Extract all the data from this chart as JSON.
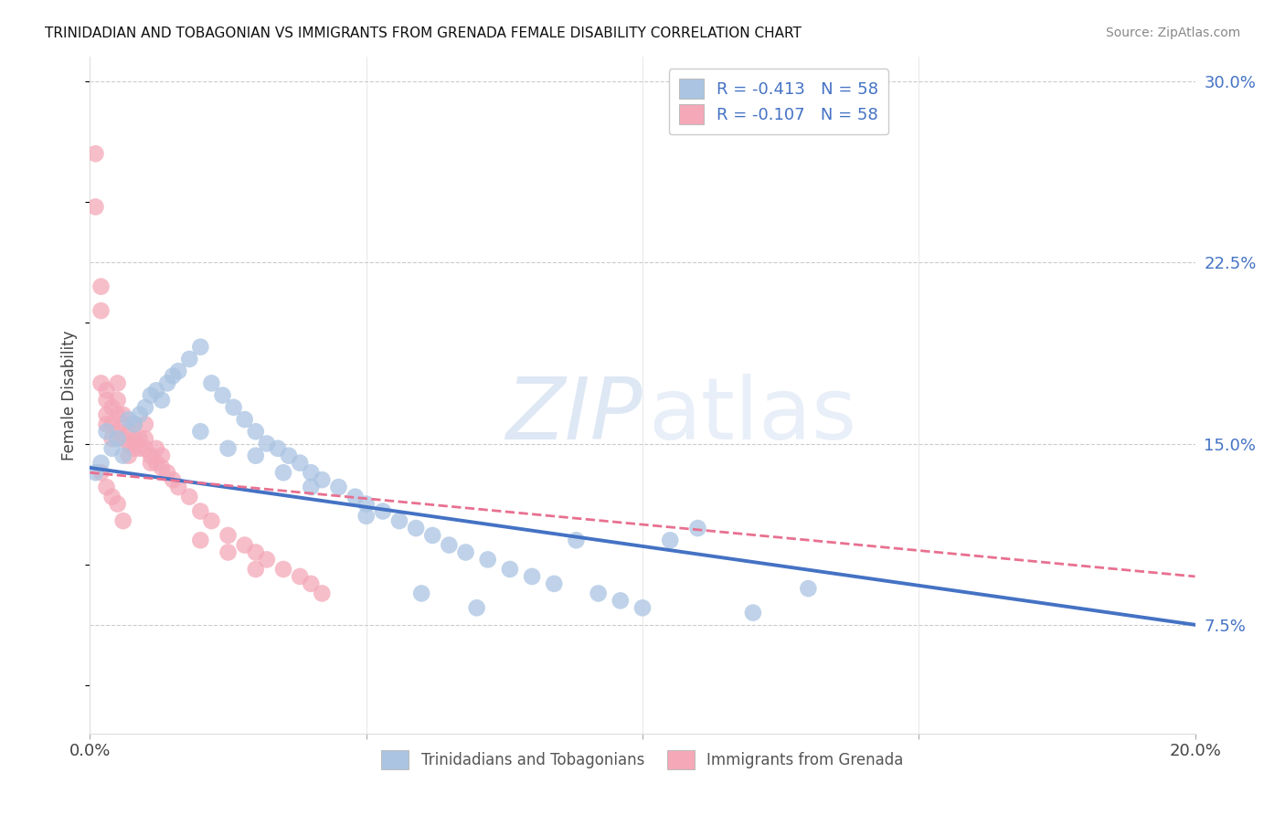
{
  "title": "TRINIDADIAN AND TOBAGONIAN VS IMMIGRANTS FROM GRENADA FEMALE DISABILITY CORRELATION CHART",
  "source": "Source: ZipAtlas.com",
  "ylabel": "Female Disability",
  "xlim": [
    0.0,
    0.2
  ],
  "ylim": [
    0.03,
    0.31
  ],
  "yticks_right": [
    0.075,
    0.15,
    0.225,
    0.3
  ],
  "ytick_labels_right": [
    "7.5%",
    "15.0%",
    "22.5%",
    "30.0%"
  ],
  "blue_R": "-0.413",
  "pink_R": "-0.107",
  "N": "58",
  "blue_color": "#aac4e2",
  "pink_color": "#f4a8b8",
  "blue_line_color": "#4472c4",
  "pink_line_color": "#e87090",
  "legend_label_blue": "Trinidadians and Tobagonians",
  "legend_label_pink": "Immigrants from Grenada",
  "blue_scatter_x": [
    0.001,
    0.002,
    0.003,
    0.004,
    0.005,
    0.006,
    0.007,
    0.008,
    0.009,
    0.01,
    0.011,
    0.012,
    0.013,
    0.014,
    0.015,
    0.016,
    0.018,
    0.02,
    0.022,
    0.024,
    0.026,
    0.028,
    0.03,
    0.032,
    0.034,
    0.036,
    0.038,
    0.04,
    0.042,
    0.045,
    0.048,
    0.05,
    0.053,
    0.056,
    0.059,
    0.062,
    0.065,
    0.068,
    0.072,
    0.076,
    0.08,
    0.084,
    0.088,
    0.092,
    0.096,
    0.1,
    0.105,
    0.11,
    0.12,
    0.13,
    0.02,
    0.025,
    0.03,
    0.035,
    0.04,
    0.05,
    0.06,
    0.07
  ],
  "blue_scatter_y": [
    0.138,
    0.142,
    0.155,
    0.148,
    0.152,
    0.145,
    0.16,
    0.158,
    0.162,
    0.165,
    0.17,
    0.172,
    0.168,
    0.175,
    0.178,
    0.18,
    0.185,
    0.19,
    0.175,
    0.17,
    0.165,
    0.16,
    0.155,
    0.15,
    0.148,
    0.145,
    0.142,
    0.138,
    0.135,
    0.132,
    0.128,
    0.125,
    0.122,
    0.118,
    0.115,
    0.112,
    0.108,
    0.105,
    0.102,
    0.098,
    0.095,
    0.092,
    0.11,
    0.088,
    0.085,
    0.082,
    0.11,
    0.115,
    0.08,
    0.09,
    0.155,
    0.148,
    0.145,
    0.138,
    0.132,
    0.12,
    0.088,
    0.082
  ],
  "pink_scatter_x": [
    0.001,
    0.001,
    0.002,
    0.002,
    0.002,
    0.003,
    0.003,
    0.003,
    0.003,
    0.004,
    0.004,
    0.004,
    0.005,
    0.005,
    0.005,
    0.005,
    0.006,
    0.006,
    0.006,
    0.007,
    0.007,
    0.007,
    0.008,
    0.008,
    0.008,
    0.009,
    0.009,
    0.01,
    0.01,
    0.01,
    0.011,
    0.011,
    0.012,
    0.012,
    0.013,
    0.013,
    0.014,
    0.015,
    0.016,
    0.018,
    0.02,
    0.022,
    0.025,
    0.028,
    0.03,
    0.032,
    0.035,
    0.038,
    0.04,
    0.042,
    0.002,
    0.003,
    0.004,
    0.005,
    0.006,
    0.02,
    0.025,
    0.03
  ],
  "pink_scatter_y": [
    0.27,
    0.248,
    0.215,
    0.205,
    0.175,
    0.168,
    0.162,
    0.158,
    0.172,
    0.165,
    0.158,
    0.152,
    0.175,
    0.168,
    0.162,
    0.155,
    0.162,
    0.158,
    0.152,
    0.155,
    0.15,
    0.145,
    0.158,
    0.152,
    0.148,
    0.152,
    0.148,
    0.158,
    0.152,
    0.148,
    0.145,
    0.142,
    0.148,
    0.142,
    0.145,
    0.14,
    0.138,
    0.135,
    0.132,
    0.128,
    0.122,
    0.118,
    0.112,
    0.108,
    0.105,
    0.102,
    0.098,
    0.095,
    0.092,
    0.088,
    0.138,
    0.132,
    0.128,
    0.125,
    0.118,
    0.11,
    0.105,
    0.098
  ],
  "blue_line_x0": 0.0,
  "blue_line_x1": 0.2,
  "blue_line_y0": 0.14,
  "blue_line_y1": 0.075,
  "pink_line_x0": 0.0,
  "pink_line_x1": 0.2,
  "pink_line_y0": 0.138,
  "pink_line_y1": 0.095
}
